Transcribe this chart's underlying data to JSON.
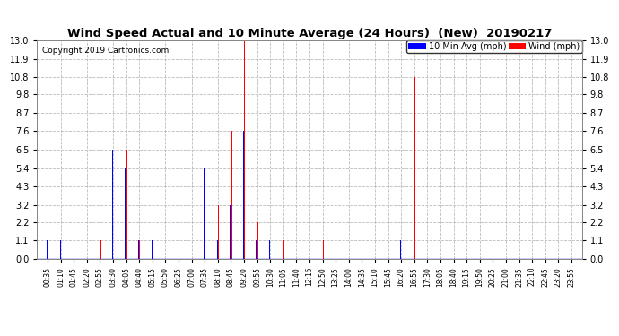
{
  "title": "Wind Speed Actual and 10 Minute Average (24 Hours)  (New)  20190217",
  "copyright": "Copyright 2019 Cartronics.com",
  "legend_blue_label": "10 Min Avg (mph)",
  "legend_red_label": "Wind (mph)",
  "yticks": [
    0.0,
    1.1,
    2.2,
    3.2,
    4.3,
    5.4,
    6.5,
    7.6,
    8.7,
    9.8,
    10.8,
    11.9,
    13.0
  ],
  "ylim": [
    0.0,
    13.0
  ],
  "blue_color": "#0000ff",
  "red_color": "#ff0000",
  "bg_color": "#ffffff",
  "grid_color": "#bbbbbb",
  "time_labels": [
    "00:35",
    "01:10",
    "01:45",
    "02:20",
    "02:55",
    "03:30",
    "04:05",
    "04:40",
    "05:15",
    "05:50",
    "06:25",
    "07:00",
    "07:35",
    "08:10",
    "08:45",
    "09:20",
    "09:55",
    "10:30",
    "11:05",
    "11:40",
    "12:15",
    "12:50",
    "13:25",
    "14:00",
    "14:35",
    "15:10",
    "15:45",
    "16:20",
    "16:55",
    "17:30",
    "18:05",
    "18:40",
    "19:15",
    "19:50",
    "20:25",
    "21:00",
    "21:35",
    "22:10",
    "22:45",
    "23:20",
    "23:55"
  ],
  "wind_actual": [
    11.9,
    0.0,
    0.0,
    0.0,
    1.1,
    0.0,
    6.5,
    1.1,
    0.0,
    0.0,
    0.0,
    0.0,
    7.6,
    3.2,
    7.6,
    13.0,
    2.2,
    0.0,
    1.1,
    0.0,
    0.0,
    1.1,
    0.0,
    0.0,
    0.0,
    0.0,
    0.0,
    0.0,
    10.8,
    0.0,
    0.0,
    0.0,
    0.0,
    0.0,
    0.0,
    0.0,
    0.0,
    0.0,
    0.0,
    0.0,
    0.0
  ],
  "wind_avg": [
    1.1,
    1.1,
    0.0,
    0.0,
    0.0,
    6.5,
    5.4,
    1.1,
    1.1,
    0.0,
    0.0,
    0.0,
    5.4,
    1.1,
    3.2,
    7.6,
    1.1,
    1.1,
    1.1,
    0.0,
    0.0,
    0.0,
    0.0,
    0.0,
    0.0,
    0.0,
    0.0,
    1.1,
    1.1,
    0.0,
    0.0,
    0.0,
    0.0,
    0.0,
    0.0,
    0.0,
    0.0,
    0.0,
    0.0,
    0.0,
    0.0
  ]
}
